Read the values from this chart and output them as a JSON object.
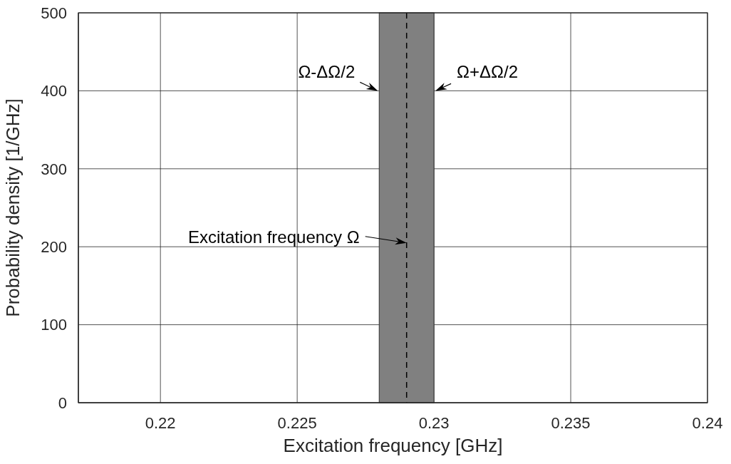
{
  "chart_data": {
    "type": "histogram",
    "bins": [
      0.228,
      0.23
    ],
    "values": [
      500
    ],
    "color": "#808080",
    "xlabel": "Excitation frequency [GHz]",
    "ylabel": "Probability density [1/GHz]",
    "xlim": [
      0.217,
      0.24
    ],
    "xticks": [
      0.22,
      0.225,
      0.23,
      0.235,
      0.24
    ],
    "ylim": [
      0,
      500
    ],
    "yticks": [
      0,
      100,
      200,
      300,
      400,
      500
    ],
    "grid": true,
    "ref_lines": [
      {
        "axis": "x",
        "value": 0.229,
        "line_style": "dashed",
        "color": "#000000"
      }
    ],
    "annotations": [
      {
        "text": "Ω-ΔΩ/2",
        "x": 0.228,
        "y": 400
      },
      {
        "text": "Ω+ΔΩ/2",
        "x": 0.23,
        "y": 400
      },
      {
        "text": "Excitation frequency Ω",
        "x": 0.229,
        "y": 205
      }
    ]
  }
}
